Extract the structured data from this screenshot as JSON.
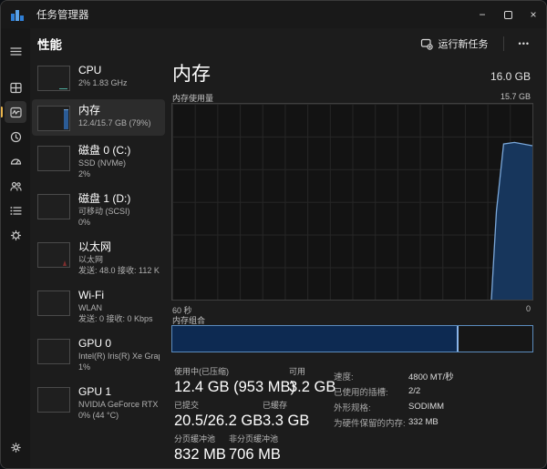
{
  "window": {
    "title": "任务管理器",
    "controls": {
      "minimize_glyph": "−",
      "close_glyph": "×"
    }
  },
  "theme": {
    "accent_yellow": "#e9b44c",
    "chart_fill": "#17365c",
    "chart_line": "#7aa7d9",
    "composition_border": "#5b8cbe",
    "composition_fill": "#0d2a52"
  },
  "rail": {
    "items": [
      {
        "id": "menu",
        "icon": "hamburger-icon"
      },
      {
        "id": "processes",
        "icon": "processes-icon"
      },
      {
        "id": "performance",
        "icon": "performance-icon",
        "selected": true
      },
      {
        "id": "app-history",
        "icon": "history-icon"
      },
      {
        "id": "startup-apps",
        "icon": "gauge-icon"
      },
      {
        "id": "users",
        "icon": "users-icon"
      },
      {
        "id": "details",
        "icon": "details-list-icon"
      },
      {
        "id": "services",
        "icon": "services-gear-icon"
      }
    ],
    "bottom": {
      "id": "settings",
      "icon": "gear-icon"
    }
  },
  "header": {
    "title": "性能",
    "run_new_task_label": "运行新任务",
    "more_label": "•••"
  },
  "sidebar": {
    "items": [
      {
        "id": "cpu",
        "title": "CPU",
        "sub1": "2%  1.83 GHz",
        "sub2": ""
      },
      {
        "id": "memory",
        "title": "内存",
        "sub1": "12.4/15.7 GB (79%)",
        "sub2": "",
        "selected": true
      },
      {
        "id": "disk0",
        "title": "磁盘 0 (C:)",
        "sub1": "SSD (NVMe)",
        "sub2": "2%"
      },
      {
        "id": "disk1",
        "title": "磁盘 1 (D:)",
        "sub1": "可移动 (SCSI)",
        "sub2": "0%"
      },
      {
        "id": "ethernet",
        "title": "以太网",
        "sub1": "以太网",
        "sub2": "发送: 48.0 接收: 112 K"
      },
      {
        "id": "wifi",
        "title": "Wi-Fi",
        "sub1": "WLAN",
        "sub2": "发送: 0 接收: 0 Kbps"
      },
      {
        "id": "gpu0",
        "title": "GPU 0",
        "sub1": "Intel(R) Iris(R) Xe Grap",
        "sub2": "1%"
      },
      {
        "id": "gpu1",
        "title": "GPU 1",
        "sub1": "NVIDIA GeForce RTX",
        "sub2": "0% (44 °C)"
      }
    ]
  },
  "main": {
    "title": "内存",
    "total": "16.0 GB",
    "usage_label": "内存使用量",
    "usage_max": "15.7 GB",
    "composition_label": "内存组合",
    "stats": {
      "rows": [
        {
          "cells": [
            {
              "label": "使用中(已压缩)",
              "value": "12.4 GB (953 MB)"
            },
            {
              "label": "可用",
              "value": "3.2 GB"
            }
          ]
        },
        {
          "cells": [
            {
              "label": "已提交",
              "value": "20.5/26.2 GB"
            },
            {
              "label": "已缓存",
              "value": "3.3 GB"
            }
          ]
        },
        {
          "cells": [
            {
              "label": "分页缓冲池",
              "value": "832 MB"
            },
            {
              "label": "非分页缓冲池",
              "value": "706 MB"
            }
          ]
        }
      ]
    },
    "details": [
      {
        "label": "速度:",
        "value": "4800 MT/秒"
      },
      {
        "label": "已使用的插槽:",
        "value": "2/2"
      },
      {
        "label": "外形规格:",
        "value": "SODIMM"
      },
      {
        "label": "为硬件保留的内存:",
        "value": "332 MB"
      }
    ]
  },
  "chart_data": [
    {
      "type": "area",
      "title": "内存使用量",
      "x_axis": {
        "left_label": "60 秒",
        "right_label": "0",
        "range_seconds": 60
      },
      "y_axis": {
        "max_label": "15.7 GB",
        "max_gb": 15.7,
        "unit": "percent"
      },
      "series": [
        {
          "name": "内存使用量 (% of 15.7 GB)",
          "points": [
            [
              0.886,
              0
            ],
            [
              0.9,
              45
            ],
            [
              0.92,
              79.5
            ],
            [
              0.95,
              80.3
            ],
            [
              1.0,
              78.6
            ]
          ]
        }
      ],
      "grid": {
        "enabled": true,
        "columns": 16,
        "rows": 6
      },
      "colors": {
        "fill": "#17365c",
        "line": "#7aa7d9",
        "grid": "#262626",
        "bg": "#131313"
      }
    },
    {
      "type": "bar",
      "title": "内存组合",
      "segments": [
        {
          "name": "使用中",
          "pct": 79.5
        },
        {
          "name": "可用",
          "pct": 20.5
        }
      ],
      "colors": {
        "fill": "#0d2a52",
        "border": "#5b8cbe",
        "divider": "#8ab4e8"
      }
    }
  ]
}
